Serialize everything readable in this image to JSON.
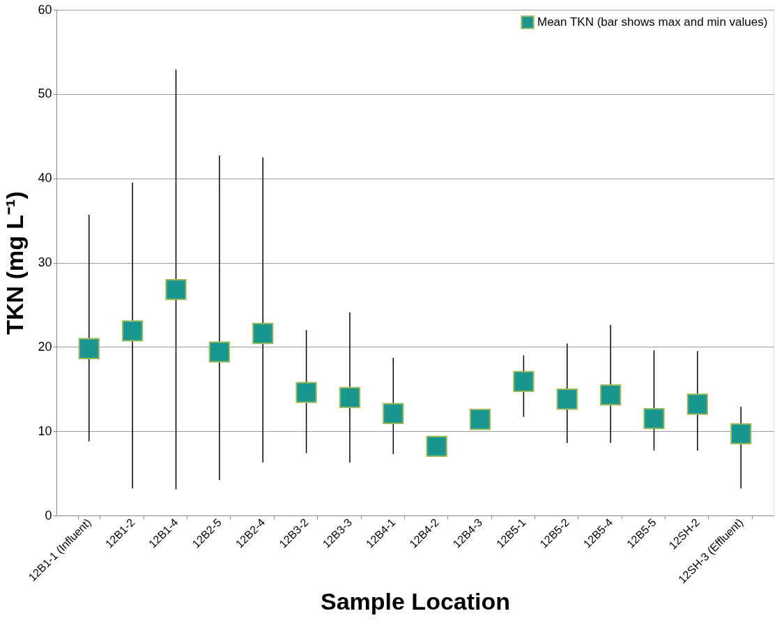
{
  "chart_data": {
    "type": "scatter",
    "xlabel": "Sample Location",
    "ylabel": "TKN (mg L⁻¹)",
    "categories": [
      "12B1-1 (Influent)",
      "12B1-2",
      "12B1-4",
      "12B2-5",
      "12B2-4",
      "12B3-2",
      "12B3-3",
      "12B4-1",
      "12B4-2",
      "12B4-3",
      "12B5-1",
      "12B5-2",
      "12B5-4",
      "12B5-5",
      "12SH-2",
      "12SH-3 (Effluent)"
    ],
    "series": [
      {
        "name": "Mean TKN (bar shows max and min values)",
        "color": "#1a9690",
        "values": [
          19.8,
          21.9,
          26.8,
          19.4,
          21.6,
          14.6,
          14.0,
          12.1,
          8.2,
          11.4,
          15.9,
          13.8,
          14.3,
          11.5,
          13.2,
          9.7
        ],
        "errors": [
          [
            8.8,
            35.7
          ],
          [
            3.2,
            39.5
          ],
          [
            3.1,
            52.9
          ],
          [
            4.2,
            42.7
          ],
          [
            6.3,
            42.5
          ],
          [
            7.4,
            22.0
          ],
          [
            6.3,
            24.1
          ],
          [
            7.3,
            18.7
          ],
          null,
          null,
          [
            11.7,
            19.0
          ],
          [
            8.6,
            20.4
          ],
          [
            8.6,
            22.6
          ],
          [
            7.7,
            19.6
          ],
          [
            7.7,
            19.5
          ],
          [
            3.2,
            12.9
          ]
        ]
      }
    ],
    "ylim": [
      0,
      60
    ],
    "yticks": [
      0,
      10,
      20,
      30,
      40,
      50,
      60
    ],
    "grid": "y",
    "marker": "square",
    "legend": "top right"
  }
}
